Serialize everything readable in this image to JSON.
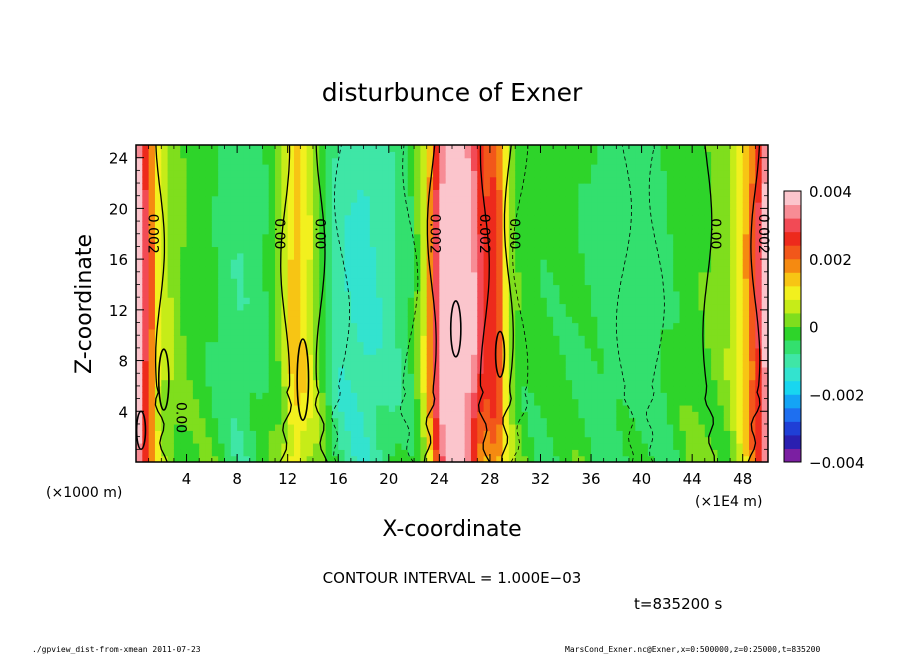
{
  "chart_data": {
    "type": "heatmap",
    "title": "disturbunce of Exner",
    "xlabel": "X-coordinate",
    "ylabel": "Z-coordinate",
    "x_unit": "(×1000 m)",
    "x_scale_note": "(×1E4 m)",
    "xlim": [
      0,
      50
    ],
    "ylim": [
      0,
      25
    ],
    "x_ticks": [
      "4",
      "8",
      "12",
      "16",
      "20",
      "24",
      "28",
      "32",
      "36",
      "40",
      "44",
      "48"
    ],
    "y_ticks": [
      "4",
      "8",
      "12",
      "16",
      "20",
      "24"
    ],
    "colorbar": {
      "min": -0.004,
      "max": 0.004,
      "labels": [
        "0.004",
        "0.002",
        "0",
        "−0.002",
        "−0.004"
      ],
      "colors": [
        "#7b1fa2",
        "#2a1fb0",
        "#1f3fd6",
        "#1e6ff0",
        "#14a4f5",
        "#18d6f0",
        "#33e3cf",
        "#3fe6a6",
        "#33e06e",
        "#2ed42a",
        "#7fde1d",
        "#c6ec18",
        "#f2f01e",
        "#f7c514",
        "#f58a11",
        "#f2571a",
        "#ed2a1c",
        "#f24a55",
        "#f78c95",
        "#fbc5cc"
      ]
    },
    "profile_x": [
      0,
      1,
      2,
      3,
      4,
      6,
      8,
      10,
      11.5,
      12.5,
      13.5,
      14.5,
      16,
      18,
      20,
      22,
      23,
      23.8,
      24.5,
      25.5,
      26.5,
      27.5,
      28.5,
      29.5,
      30.5,
      32,
      34,
      36,
      38,
      40,
      42,
      44,
      45.5,
      47,
      48.5,
      49.5,
      50
    ],
    "profile_v": [
      0.0042,
      0.0022,
      0.0005,
      0.0003,
      -0.0001,
      -0.0003,
      -0.0007,
      -0.0005,
      0.0002,
      0.0014,
      0.0009,
      0.0001,
      -0.001,
      -0.0012,
      -0.0009,
      -0.0003,
      0.001,
      0.0028,
      0.0039,
      0.0041,
      0.0035,
      0.0022,
      0.0024,
      0.0004,
      -0.0002,
      -0.0003,
      -0.0003,
      -0.0004,
      -0.0006,
      -0.0006,
      -0.0004,
      -0.0001,
      0.0,
      0.0003,
      0.0016,
      0.003,
      0.004
    ],
    "contour_labels": [
      {
        "x": 1.0,
        "z": 18,
        "text": "0.002"
      },
      {
        "x": 3.2,
        "z": 3.5,
        "text": "0.00"
      },
      {
        "x": 11.0,
        "z": 18,
        "text": "0.00"
      },
      {
        "x": 14.2,
        "z": 18,
        "text": "0.00"
      },
      {
        "x": 23.3,
        "z": 18,
        "text": "0.002"
      },
      {
        "x": 27.2,
        "z": 18,
        "text": "0.002"
      },
      {
        "x": 29.6,
        "z": 18,
        "text": "0.00"
      },
      {
        "x": 45.5,
        "z": 18,
        "text": "0.00"
      },
      {
        "x": 49.3,
        "z": 18,
        "text": "0.002"
      }
    ],
    "contour_interval": "CONTOUR INTERVAL = 1.000E−03",
    "time_label": "t=835200 s"
  },
  "footer": {
    "left": "./gpview_dist-from-xmean  2011-07-23",
    "right": "MarsCond_Exner.nc@Exner,x=0:500000,z=0:25000,t=835200"
  }
}
